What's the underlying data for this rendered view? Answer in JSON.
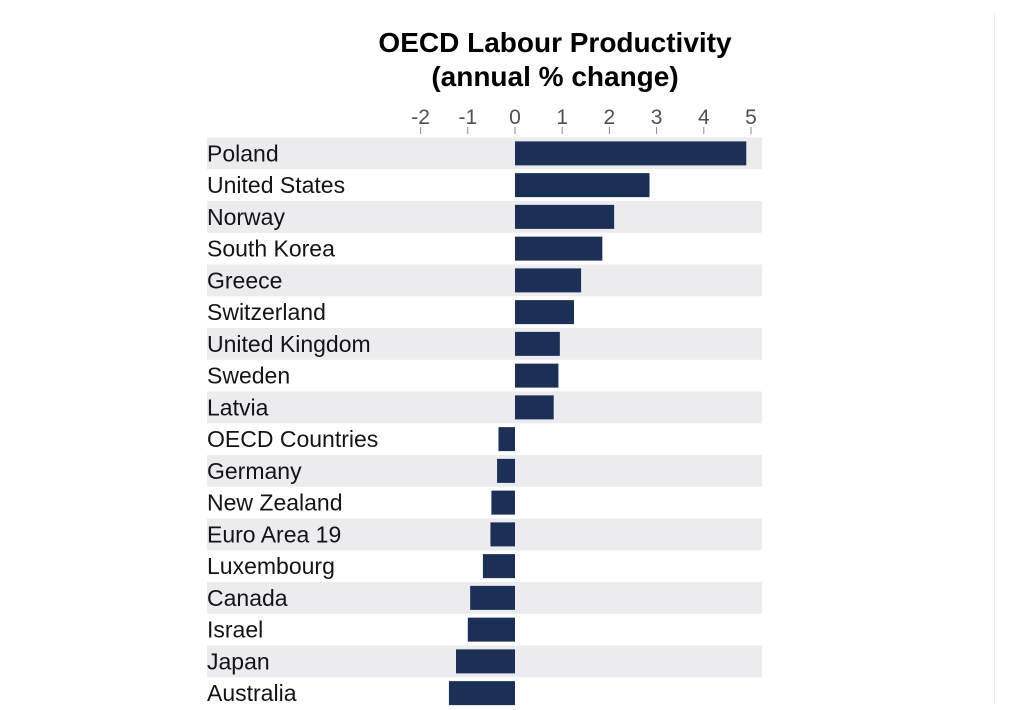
{
  "chart_data": {
    "type": "bar",
    "orientation": "horizontal",
    "title": "OECD Labour Productivity",
    "subtitle": "(annual % change)",
    "xlabel": "",
    "ylabel": "",
    "xlim": [
      -2,
      5
    ],
    "ticks": [
      "-2",
      "-1",
      "0",
      "1",
      "2",
      "3",
      "4",
      "5"
    ],
    "tick_position": "top",
    "grid": false,
    "alternating_row_bands": true,
    "bar_color": "#1c3055",
    "band_color": "#ebebf0",
    "categories": [
      "Poland",
      "United States",
      "Norway",
      "South Korea",
      "Greece",
      "Switzerland",
      "United Kingdom",
      "Sweden",
      "Latvia",
      "OECD Countries",
      "Germany",
      "New Zealand",
      "Euro Area 19",
      "Luxembourg",
      "Canada",
      "Israel",
      "Japan",
      "Australia"
    ],
    "values": [
      4.9,
      2.85,
      2.1,
      1.85,
      1.4,
      1.25,
      0.95,
      0.92,
      0.82,
      -0.35,
      -0.38,
      -0.5,
      -0.52,
      -0.68,
      -0.95,
      -1.0,
      -1.25,
      -1.4
    ]
  }
}
